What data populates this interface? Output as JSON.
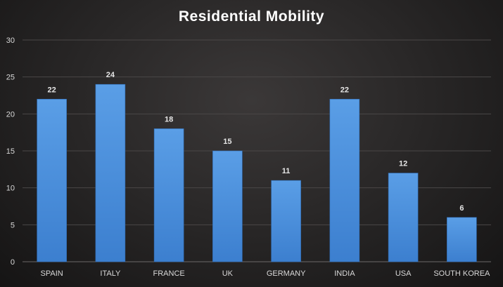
{
  "chart_data": {
    "type": "bar",
    "title": "Residential Mobility",
    "xlabel": "",
    "ylabel": "",
    "categories": [
      "SPAIN",
      "ITALY",
      "FRANCE",
      "UK",
      "GERMANY",
      "INDIA",
      "USA",
      "SOUTH KOREA"
    ],
    "values": [
      22,
      24,
      18,
      15,
      11,
      22,
      12,
      6
    ],
    "ylim": [
      0,
      30
    ],
    "yticks": [
      0,
      5,
      10,
      15,
      20,
      25,
      30
    ],
    "grid": true,
    "legend": "none",
    "bar_color": "#4a8ed8",
    "data_labels": true
  }
}
